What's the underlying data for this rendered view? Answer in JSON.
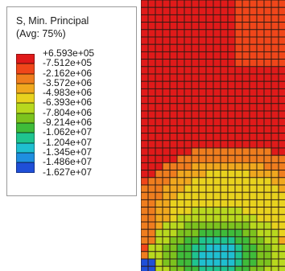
{
  "legend": {
    "title_line1": "S, Min. Principal",
    "title_line2": "(Avg: 75%)",
    "ticks": [
      "+6.593e+05",
      "-7.512e+05",
      "-2.162e+06",
      "-3.572e+06",
      "-4.983e+06",
      "-6.393e+06",
      "-7.804e+06",
      "-9.214e+06",
      "-1.062e+07",
      "-1.204e+07",
      "-1.345e+07",
      "-1.486e+07",
      "-1.627e+07"
    ],
    "band_colors": [
      "#e01a1a",
      "#f0461a",
      "#ef7d1e",
      "#f0a81e",
      "#e8d21e",
      "#b8d81e",
      "#7cc31e",
      "#3fbc3a",
      "#1fc48f",
      "#1fbfd0",
      "#1f8fe0",
      "#1f4fd8"
    ]
  },
  "contour": {
    "palette": [
      "#e01a1a",
      "#f0461a",
      "#ef7d1e",
      "#f0a81e",
      "#e8d21e",
      "#b8d81e",
      "#7cc31e",
      "#3fbc3a",
      "#1fc48f",
      "#1fbfd0",
      "#1f8fe0",
      "#1f4fd8"
    ],
    "mesh_line_color": "#2a1a14"
  }
}
